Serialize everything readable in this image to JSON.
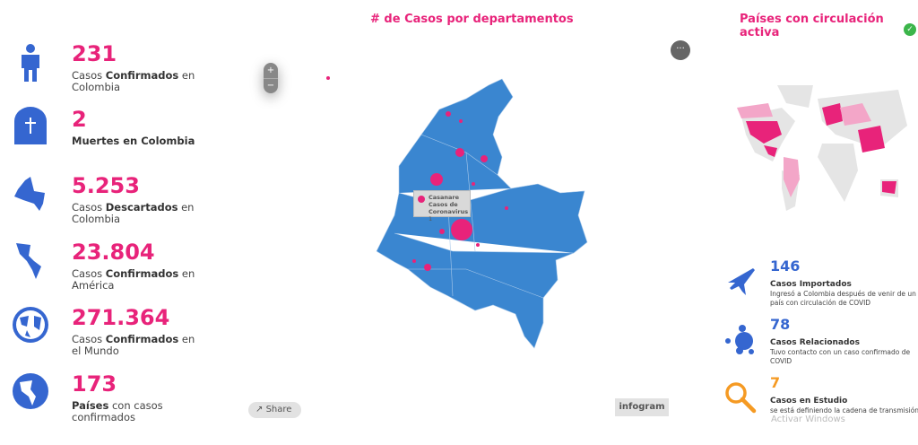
{
  "left_stats": [
    {
      "icon": "person-icon",
      "value": "231",
      "pre": "Casos ",
      "bold": "Confirmados",
      "post": " en Colombia"
    },
    {
      "icon": "tombstone-icon",
      "value": "2",
      "pre": "",
      "bold": "Muertes en Colombia",
      "post": ""
    },
    {
      "icon": "colombia-map-icon",
      "value": "5.253",
      "pre": "Casos ",
      "bold": "Descartados",
      "post": " en Colombia"
    },
    {
      "icon": "americas-icon",
      "value": "23.804",
      "pre": "Casos ",
      "bold": "Confirmados",
      "post": " en América"
    },
    {
      "icon": "globe-icon",
      "value": "271.364",
      "pre": "Casos ",
      "bold": "Confirmados",
      "post": " en el Mundo"
    },
    {
      "icon": "globe-americas-icon",
      "value": "173",
      "pre": "",
      "bold": "Países",
      "post": " con casos confirmados"
    }
  ],
  "map": {
    "title": "# de Casos por departamentos",
    "zoom_in": "+",
    "zoom_out": "−",
    "more": "···",
    "share": "Share",
    "brand": "infogram",
    "tooltip": {
      "name": "Casanare",
      "label": "Casos de Coronavirus",
      "value": "1"
    },
    "colors": {
      "land": "#3a86d0",
      "bubble": "#e8237a"
    }
  },
  "world": {
    "title": "Países con circulación activa"
  },
  "right_stats": [
    {
      "icon": "airplane-icon",
      "value": "146",
      "title": "Casos Importados",
      "desc": "Ingresó a Colombia después de venir de un país con circulación de COVID",
      "color": "#3566d0"
    },
    {
      "icon": "bubbles-icon",
      "value": "78",
      "title": "Casos Relacionados",
      "desc": "Tuvo contacto con un caso confirmado de COVID",
      "color": "#3566d0"
    },
    {
      "icon": "magnifier-icon",
      "value": "7",
      "title": "Casos en Estudio",
      "desc": "se está definiendo la cadena de transmisión",
      "color": "#f59a23"
    }
  ],
  "watermark": "Activar Windows"
}
